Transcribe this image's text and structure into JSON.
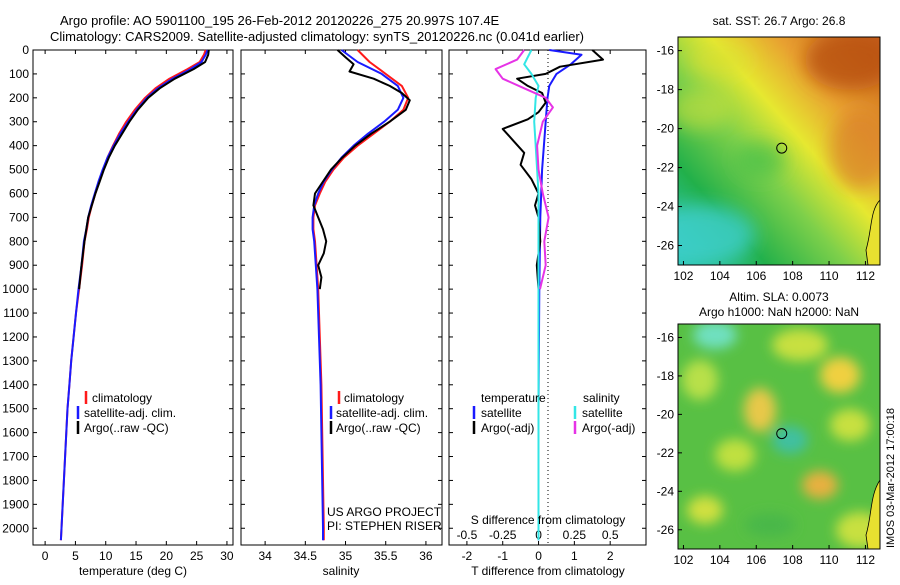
{
  "header": {
    "line1": "Argo profile: AO 5901100_195 26-Feb-2012 20120226_275 20.997S 107.4E",
    "line2": "Climatology: CARS2009. Satellite-adjusted climatology: synTS_20120226.nc (0.041d earlier)"
  },
  "colors": {
    "climatology": "#ff1a1a",
    "satellite": "#1a1aff",
    "argo": "#000000",
    "satellite_s": "#33e6e6",
    "argo_s": "#e633e6"
  },
  "credits": {
    "line1": "US ARGO PROJECT",
    "line2": "PI: STEPHEN RISER"
  },
  "side_stamp": "IMOS 03-Mar-2012 17:00:18",
  "chart_data": [
    {
      "id": "temperature-profile",
      "type": "line",
      "xlabel": "temperature (deg C)",
      "ylabel": "",
      "xlim": [
        -2,
        31
      ],
      "ylim": [
        2070,
        0
      ],
      "x_ticks": [
        0,
        5,
        10,
        15,
        20,
        25,
        30
      ],
      "y_ticks": [
        0,
        100,
        200,
        300,
        400,
        500,
        600,
        700,
        800,
        900,
        1000,
        1100,
        1200,
        1300,
        1400,
        1500,
        1600,
        1700,
        1800,
        1900,
        2000
      ],
      "legend": [
        "climatology",
        "satellite-adj. clim.",
        "Argo(..raw -QC)"
      ],
      "legend_position": "bottom-right",
      "series": [
        {
          "name": "climatology",
          "color": "#ff1a1a",
          "points": [
            [
              26.5,
              0
            ],
            [
              26.2,
              20
            ],
            [
              25.5,
              50
            ],
            [
              23.5,
              80
            ],
            [
              20.5,
              120
            ],
            [
              18.2,
              160
            ],
            [
              16.5,
              200
            ],
            [
              14.8,
              250
            ],
            [
              13.4,
              300
            ],
            [
              12.2,
              350
            ],
            [
              11.2,
              400
            ],
            [
              10.3,
              450
            ],
            [
              9.6,
              500
            ],
            [
              8.9,
              550
            ],
            [
              8.3,
              600
            ],
            [
              7.7,
              650
            ],
            [
              7.2,
              700
            ],
            [
              6.9,
              750
            ],
            [
              6.5,
              800
            ],
            [
              6.1,
              900
            ],
            [
              5.6,
              1000
            ],
            [
              5.1,
              1100
            ],
            [
              4.7,
              1200
            ],
            [
              4.3,
              1300
            ],
            [
              4.0,
              1400
            ],
            [
              3.7,
              1500
            ],
            [
              3.5,
              1600
            ],
            [
              3.3,
              1700
            ],
            [
              3.1,
              1800
            ],
            [
              2.9,
              1900
            ],
            [
              2.7,
              2000
            ],
            [
              2.6,
              2050
            ]
          ]
        },
        {
          "name": "satellite-adj. clim.",
          "color": "#1a1aff",
          "points": [
            [
              26.8,
              0
            ],
            [
              26.5,
              20
            ],
            [
              25.8,
              50
            ],
            [
              24.0,
              80
            ],
            [
              21.0,
              120
            ],
            [
              18.6,
              160
            ],
            [
              16.8,
              200
            ],
            [
              15.1,
              250
            ],
            [
              13.7,
              300
            ],
            [
              12.4,
              350
            ],
            [
              11.3,
              400
            ],
            [
              10.3,
              450
            ],
            [
              9.5,
              500
            ],
            [
              8.8,
              550
            ],
            [
              8.2,
              600
            ],
            [
              7.6,
              650
            ],
            [
              7.1,
              700
            ],
            [
              6.8,
              750
            ],
            [
              6.4,
              800
            ],
            [
              6.0,
              900
            ],
            [
              5.5,
              1000
            ],
            [
              5.1,
              1100
            ],
            [
              4.7,
              1200
            ],
            [
              4.3,
              1300
            ],
            [
              4.0,
              1400
            ],
            [
              3.7,
              1500
            ],
            [
              3.5,
              1600
            ],
            [
              3.3,
              1700
            ],
            [
              3.1,
              1800
            ],
            [
              2.9,
              1900
            ],
            [
              2.7,
              2000
            ],
            [
              2.6,
              2050
            ]
          ]
        },
        {
          "name": "Argo(..raw -QC)",
          "color": "#000000",
          "points": [
            [
              27.0,
              0
            ],
            [
              26.9,
              20
            ],
            [
              26.4,
              50
            ],
            [
              24.5,
              80
            ],
            [
              21.4,
              120
            ],
            [
              18.9,
              160
            ],
            [
              17.0,
              200
            ],
            [
              15.3,
              250
            ],
            [
              13.9,
              300
            ],
            [
              12.7,
              350
            ],
            [
              11.5,
              400
            ],
            [
              10.5,
              450
            ],
            [
              9.7,
              500
            ],
            [
              9.0,
              550
            ],
            [
              8.3,
              600
            ],
            [
              7.7,
              650
            ],
            [
              7.1,
              700
            ],
            [
              6.8,
              750
            ],
            [
              6.5,
              800
            ],
            [
              6.0,
              900
            ],
            [
              5.6,
              1000
            ]
          ]
        }
      ]
    },
    {
      "id": "salinity-profile",
      "type": "line",
      "xlabel": "salinity",
      "xlim": [
        33.7,
        36.2
      ],
      "ylim": [
        2070,
        0
      ],
      "x_ticks": [
        34,
        34.5,
        35,
        35.5,
        36
      ],
      "legend": [
        "climatology",
        "satellite-adj. clim.",
        "Argo(..raw -QC)"
      ],
      "legend_position": "bottom-right",
      "series": [
        {
          "name": "climatology",
          "color": "#ff1a1a",
          "points": [
            [
              35.15,
              0
            ],
            [
              35.3,
              50
            ],
            [
              35.5,
              100
            ],
            [
              35.7,
              150
            ],
            [
              35.78,
              200
            ],
            [
              35.72,
              250
            ],
            [
              35.55,
              300
            ],
            [
              35.35,
              350
            ],
            [
              35.15,
              400
            ],
            [
              34.98,
              450
            ],
            [
              34.85,
              500
            ],
            [
              34.75,
              550
            ],
            [
              34.68,
              600
            ],
            [
              34.62,
              650
            ],
            [
              34.6,
              700
            ],
            [
              34.6,
              750
            ],
            [
              34.62,
              800
            ],
            [
              34.64,
              900
            ],
            [
              34.66,
              1000
            ],
            [
              34.68,
              1200
            ],
            [
              34.7,
              1400
            ],
            [
              34.71,
              1600
            ],
            [
              34.72,
              1800
            ],
            [
              34.73,
              2000
            ],
            [
              34.73,
              2050
            ]
          ]
        },
        {
          "name": "satellite-adj. clim.",
          "color": "#1a1aff",
          "points": [
            [
              34.95,
              0
            ],
            [
              35.15,
              50
            ],
            [
              35.45,
              100
            ],
            [
              35.65,
              150
            ],
            [
              35.72,
              200
            ],
            [
              35.65,
              250
            ],
            [
              35.48,
              300
            ],
            [
              35.28,
              350
            ],
            [
              35.1,
              400
            ],
            [
              34.95,
              450
            ],
            [
              34.83,
              500
            ],
            [
              34.73,
              550
            ],
            [
              34.66,
              600
            ],
            [
              34.61,
              650
            ],
            [
              34.59,
              700
            ],
            [
              34.59,
              750
            ],
            [
              34.61,
              800
            ],
            [
              34.63,
              900
            ],
            [
              34.65,
              1000
            ],
            [
              34.67,
              1200
            ],
            [
              34.69,
              1400
            ],
            [
              34.7,
              1600
            ],
            [
              34.71,
              1800
            ],
            [
              34.72,
              2000
            ],
            [
              34.72,
              2050
            ]
          ]
        },
        {
          "name": "Argo(..raw -QC)",
          "color": "#000000",
          "points": [
            [
              34.9,
              0
            ],
            [
              35.0,
              30
            ],
            [
              35.1,
              60
            ],
            [
              35.05,
              90
            ],
            [
              35.35,
              120
            ],
            [
              35.55,
              150
            ],
            [
              35.7,
              180
            ],
            [
              35.8,
              210
            ],
            [
              35.75,
              250
            ],
            [
              35.55,
              300
            ],
            [
              35.32,
              350
            ],
            [
              35.12,
              400
            ],
            [
              34.96,
              450
            ],
            [
              34.82,
              500
            ],
            [
              34.72,
              550
            ],
            [
              34.62,
              600
            ],
            [
              34.6,
              650
            ],
            [
              34.66,
              700
            ],
            [
              34.72,
              750
            ],
            [
              34.76,
              800
            ],
            [
              34.73,
              850
            ],
            [
              34.66,
              900
            ],
            [
              34.7,
              950
            ],
            [
              34.68,
              1000
            ]
          ]
        }
      ]
    },
    {
      "id": "difference-profile",
      "type": "line",
      "xlabel": "T difference from climatology",
      "x2label": "S difference from climatology",
      "xlim": [
        -2.5,
        3
      ],
      "x2lim": [
        -0.625,
        0.75
      ],
      "ylim": [
        2070,
        0
      ],
      "x_ticks": [
        -2,
        -1,
        0,
        1,
        2
      ],
      "x2_ticks": [
        -0.5,
        -0.25,
        0,
        0.25,
        0.5
      ],
      "legend_titles": [
        "temperature",
        "salinity"
      ],
      "legend": [
        "satellite",
        "Argo(-adj)",
        "satellite",
        "Argo(-adj)"
      ],
      "legend_position": "bottom",
      "series": [
        {
          "name": "temperature satellite",
          "color": "#1a1aff",
          "points": [
            [
              0.3,
              0
            ],
            [
              1.2,
              20
            ],
            [
              0.9,
              60
            ],
            [
              0.5,
              100
            ],
            [
              0.3,
              150
            ],
            [
              0.25,
              200
            ],
            [
              0.2,
              300
            ],
            [
              0.15,
              400
            ],
            [
              0.1,
              500
            ],
            [
              0.05,
              700
            ],
            [
              0.02,
              1000
            ],
            [
              0.0,
              1500
            ],
            [
              0.0,
              2050
            ]
          ]
        },
        {
          "name": "temperature Argo(-adj)",
          "color": "#000000",
          "points": [
            [
              1.5,
              0
            ],
            [
              1.8,
              40
            ],
            [
              0.6,
              70
            ],
            [
              0.2,
              100
            ],
            [
              -0.6,
              120
            ],
            [
              -0.3,
              150
            ],
            [
              0.1,
              180
            ],
            [
              0.2,
              220
            ],
            [
              0.0,
              260
            ],
            [
              -0.3,
              290
            ],
            [
              -1.0,
              330
            ],
            [
              -0.7,
              380
            ],
            [
              -0.4,
              430
            ],
            [
              -0.5,
              480
            ],
            [
              -0.2,
              540
            ],
            [
              0.0,
              600
            ],
            [
              -0.1,
              650
            ],
            [
              0.0,
              700
            ],
            [
              0.05,
              800
            ],
            [
              -0.05,
              900
            ],
            [
              0.0,
              1000
            ]
          ]
        },
        {
          "name": "salinity satellite",
          "color": "#33e6e6",
          "points": [
            [
              -0.05,
              0
            ],
            [
              -0.1,
              60
            ],
            [
              -0.05,
              100
            ],
            [
              0.0,
              150
            ],
            [
              -0.02,
              200
            ],
            [
              -0.03,
              300
            ],
            [
              -0.02,
              400
            ],
            [
              -0.01,
              500
            ],
            [
              0.0,
              600
            ],
            [
              0.0,
              800
            ],
            [
              0.0,
              1000
            ],
            [
              0.0,
              2050
            ]
          ]
        },
        {
          "name": "salinity Argo(-adj)",
          "color": "#e633e6",
          "points": [
            [
              -0.1,
              0
            ],
            [
              -0.15,
              40
            ],
            [
              -0.3,
              80
            ],
            [
              -0.25,
              120
            ],
            [
              -0.1,
              160
            ],
            [
              0.05,
              200
            ],
            [
              0.1,
              240
            ],
            [
              0.03,
              300
            ],
            [
              -0.01,
              400
            ],
            [
              0.0,
              500
            ],
            [
              0.03,
              600
            ],
            [
              0.07,
              700
            ],
            [
              0.04,
              800
            ],
            [
              0.05,
              900
            ],
            [
              0.01,
              1000
            ]
          ]
        }
      ]
    },
    {
      "id": "sst-map",
      "type": "heatmap",
      "title": "sat. SST: 26.7 Argo: 26.8",
      "xlim": [
        101.7,
        112.8
      ],
      "ylim": [
        -27,
        -15.3
      ],
      "x_ticks": [
        102,
        104,
        106,
        108,
        110,
        112
      ],
      "y_ticks": [
        -16,
        -18,
        -20,
        -22,
        -24,
        -26
      ],
      "marker": {
        "lon": 107.4,
        "lat": -21.0
      }
    },
    {
      "id": "sla-map",
      "type": "heatmap",
      "title_line1": "Altim. SLA: 0.0073",
      "title_line2": "Argo h1000: NaN h2000: NaN",
      "xlim": [
        101.7,
        112.8
      ],
      "ylim": [
        -27,
        -15.3
      ],
      "x_ticks": [
        102,
        104,
        106,
        108,
        110,
        112
      ],
      "y_ticks": [
        -16,
        -18,
        -20,
        -22,
        -24,
        -26
      ],
      "marker": {
        "lon": 107.4,
        "lat": -21.0
      }
    }
  ]
}
